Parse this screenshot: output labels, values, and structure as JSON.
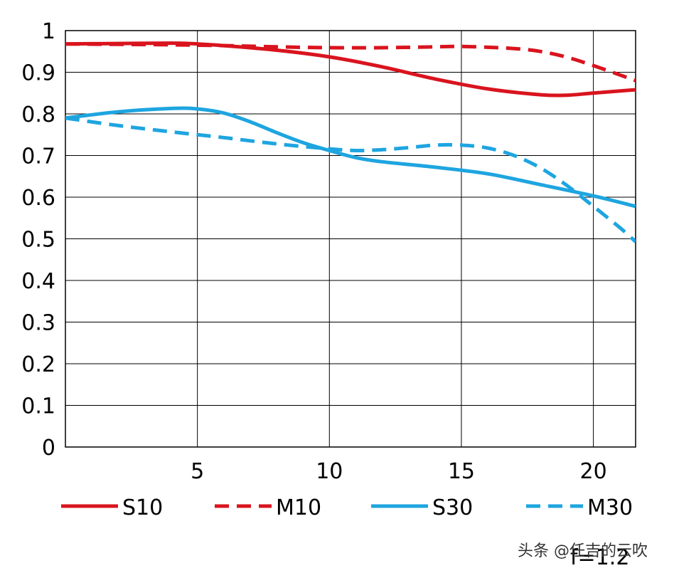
{
  "chart_data": {
    "type": "line",
    "title": "",
    "xlabel": "",
    "ylabel": "",
    "xlim": [
      0,
      21.6
    ],
    "ylim": [
      0,
      1
    ],
    "x_ticks": [
      5,
      10,
      15,
      20
    ],
    "x_tick_labels": [
      "5",
      "10",
      "15",
      "20"
    ],
    "y_ticks": [
      0,
      0.1,
      0.2,
      0.3,
      0.4,
      0.5,
      0.6,
      0.7,
      0.8,
      0.9,
      1
    ],
    "y_tick_labels": [
      "0",
      "0.1",
      "0.2",
      "0.3",
      "0.4",
      "0.5",
      "0.6",
      "0.7",
      "0.8",
      "0.9",
      "1"
    ],
    "grid": true,
    "legend_position": "bottom",
    "series": [
      {
        "name": "S10",
        "color": "#d9141e",
        "dash": "solid",
        "x": [
          0,
          2,
          4,
          5,
          6,
          8,
          10,
          12,
          14,
          16,
          18,
          19,
          20,
          21.6
        ],
        "y": [
          0.968,
          0.969,
          0.97,
          0.968,
          0.964,
          0.953,
          0.937,
          0.913,
          0.884,
          0.86,
          0.846,
          0.845,
          0.85,
          0.858
        ]
      },
      {
        "name": "M10",
        "color": "#d9141e",
        "dash": "dashed",
        "x": [
          0,
          2,
          4,
          5,
          6,
          8,
          10,
          12,
          14,
          15,
          16,
          17,
          18,
          19,
          20,
          21.6
        ],
        "y": [
          0.968,
          0.967,
          0.966,
          0.965,
          0.964,
          0.961,
          0.959,
          0.959,
          0.961,
          0.962,
          0.96,
          0.957,
          0.95,
          0.936,
          0.916,
          0.88
        ]
      },
      {
        "name": "S30",
        "color": "#1ea5e0",
        "dash": "solid",
        "x": [
          0,
          2,
          4,
          5,
          6,
          7,
          8,
          9,
          10,
          11,
          12,
          14,
          16,
          18,
          20,
          21.6
        ],
        "y": [
          0.79,
          0.805,
          0.813,
          0.812,
          0.802,
          0.781,
          0.755,
          0.731,
          0.712,
          0.695,
          0.685,
          0.672,
          0.656,
          0.63,
          0.603,
          0.578
        ]
      },
      {
        "name": "M30",
        "color": "#1ea5e0",
        "dash": "dashed",
        "x": [
          0,
          2,
          4,
          6,
          8,
          10,
          11,
          12,
          13,
          14,
          15,
          16,
          17,
          18,
          19,
          20,
          21,
          21.6
        ],
        "y": [
          0.79,
          0.772,
          0.757,
          0.743,
          0.728,
          0.716,
          0.712,
          0.714,
          0.719,
          0.725,
          0.725,
          0.718,
          0.7,
          0.67,
          0.628,
          0.578,
          0.527,
          0.493
        ]
      }
    ]
  },
  "watermark": "头条 @任吉的云吹",
  "aperture_label": "f=1.2"
}
